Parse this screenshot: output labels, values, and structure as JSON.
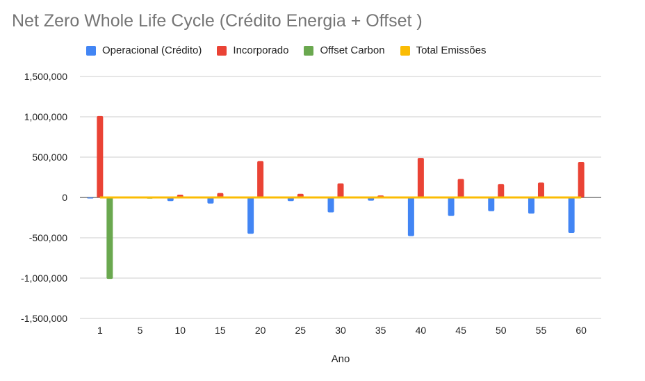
{
  "chart_data": {
    "type": "bar",
    "title": "Net Zero Whole Life Cycle (Crédito Energia + Offset )",
    "xlabel": "Ano",
    "ylabel": "",
    "ylim": [
      -1500000,
      1500000
    ],
    "yticks": [
      1500000,
      1000000,
      500000,
      0,
      -500000,
      -1000000,
      -1500000
    ],
    "ytick_labels": [
      "1,500,000",
      "1,000,000",
      "500,000",
      "0",
      "-500,000",
      "-1,000,000",
      "-1,500,000"
    ],
    "categories": [
      "1",
      "5",
      "10",
      "15",
      "20",
      "25",
      "30",
      "35",
      "40",
      "45",
      "50",
      "55",
      "60"
    ],
    "grid": true,
    "legend_position": "top",
    "series": [
      {
        "name": "Operacional (Crédito)",
        "color": "#4285f4",
        "values": [
          -10000,
          -10000,
          -45000,
          -75000,
          -450000,
          -45000,
          -185000,
          -40000,
          -480000,
          -230000,
          -170000,
          -200000,
          -440000
        ]
      },
      {
        "name": "Incorporado",
        "color": "#ea4335",
        "values": [
          1010000,
          0,
          35000,
          55000,
          450000,
          45000,
          175000,
          25000,
          490000,
          230000,
          165000,
          185000,
          440000
        ]
      },
      {
        "name": "Offset Carbon",
        "color": "#6aa84f",
        "values": [
          -1010000,
          -15000,
          0,
          0,
          0,
          0,
          0,
          0,
          0,
          0,
          0,
          0,
          0
        ]
      },
      {
        "name": "Total Emissões",
        "color": "#fbbc04",
        "style": "line",
        "values": [
          0,
          0,
          0,
          0,
          0,
          0,
          0,
          0,
          0,
          0,
          0,
          0,
          0
        ]
      }
    ]
  }
}
